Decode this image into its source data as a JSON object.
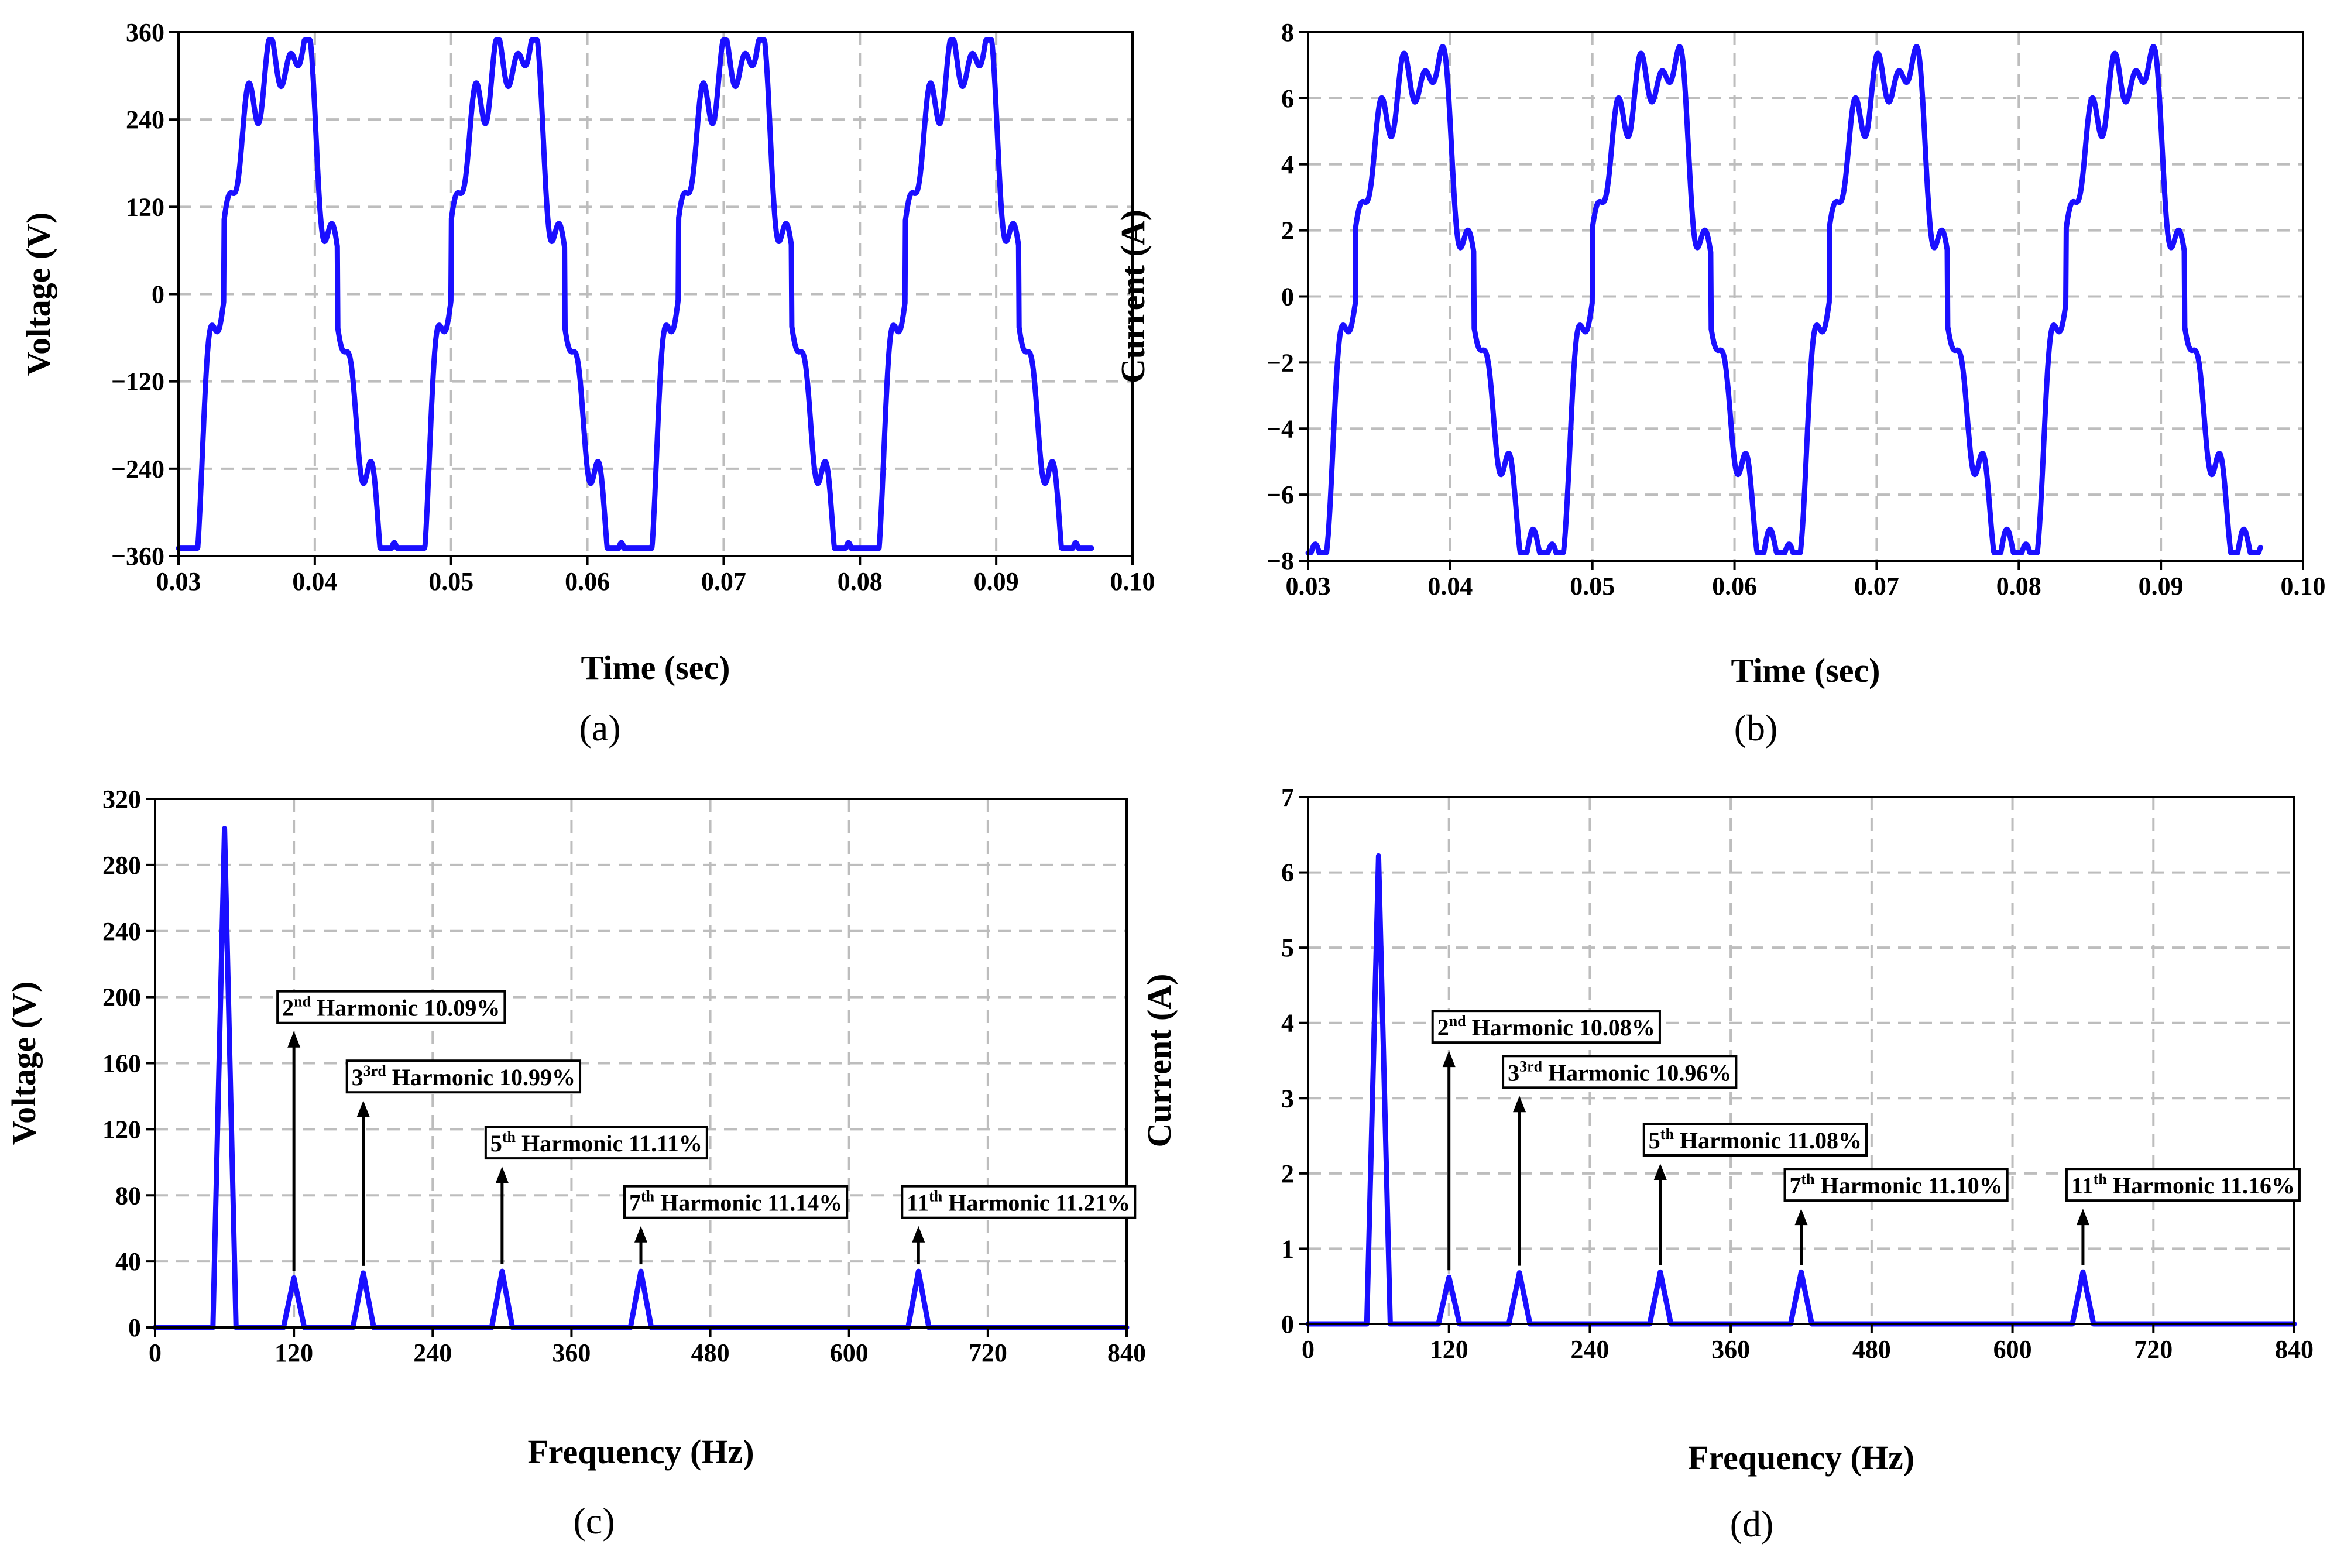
{
  "series_color": "#1a0fff",
  "chart_data": [
    {
      "panel": "a",
      "type": "line",
      "panel_label": "(a)",
      "xlabel": "Time (sec)",
      "ylabel": "Voltage (V)",
      "xlim": [
        0.03,
        0.1
      ],
      "ylim": [
        -360,
        360
      ],
      "xticks": [
        "0.03",
        "0.04",
        "0.05",
        "0.06",
        "0.07",
        "0.08",
        "0.09",
        "0.10"
      ],
      "yticks": [
        "-360",
        "-240",
        "-120",
        "0",
        "120",
        "240",
        "360"
      ],
      "x_range_drawn": [
        0.03,
        0.097
      ],
      "waveform": {
        "fundamental_hz": 60,
        "peak": 300,
        "harmonics": [
          [
            2,
            30
          ],
          [
            3,
            33
          ],
          [
            5,
            33
          ],
          [
            7,
            33
          ],
          [
            11,
            33
          ]
        ]
      }
    },
    {
      "panel": "b",
      "type": "line",
      "panel_label": "(b)",
      "xlabel": "Time (sec)",
      "ylabel": "Current (A)",
      "xlim": [
        0.03,
        0.1
      ],
      "ylim": [
        -8,
        8
      ],
      "xticks": [
        "0.03",
        "0.04",
        "0.05",
        "0.06",
        "0.07",
        "0.08",
        "0.09",
        "0.10"
      ],
      "yticks": [
        "-8",
        "-6",
        "-4",
        "-2",
        "0",
        "2",
        "4",
        "6",
        "8"
      ],
      "x_range_drawn": [
        0.03,
        0.097
      ],
      "waveform": {
        "fundamental_hz": 60,
        "peak": 6.2,
        "harmonics": [
          [
            2,
            0.62
          ],
          [
            3,
            0.68
          ],
          [
            5,
            0.69
          ],
          [
            7,
            0.69
          ],
          [
            11,
            0.69
          ]
        ]
      }
    },
    {
      "panel": "c",
      "type": "line",
      "panel_label": "(c)",
      "xlabel": "Frequency (Hz)",
      "ylabel": "Voltage (V)",
      "xlim": [
        0,
        840
      ],
      "ylim": [
        0,
        320
      ],
      "xticks": [
        "0",
        "120",
        "240",
        "360",
        "480",
        "600",
        "720",
        "840"
      ],
      "yticks": [
        "0",
        "40",
        "80",
        "120",
        "160",
        "200",
        "240",
        "280",
        "320"
      ],
      "peaks": [
        {
          "freq": 60,
          "value": 302
        },
        {
          "freq": 120,
          "value": 30
        },
        {
          "freq": 180,
          "value": 33
        },
        {
          "freq": 300,
          "value": 34
        },
        {
          "freq": 420,
          "value": 34
        },
        {
          "freq": 660,
          "value": 34
        }
      ],
      "annotations": [
        {
          "n": "2",
          "sup": "nd",
          "label": " Harmonic 10.09%",
          "freq": 120,
          "arrow_top": 178
        },
        {
          "n": "3",
          "sup": "3rd",
          "label": " Harmonic 10.99%",
          "freq": 180,
          "arrow_top": 136
        },
        {
          "n": "5",
          "sup": "th",
          "label": " Harmonic 11.11%",
          "freq": 300,
          "arrow_top": 96
        },
        {
          "n": "7",
          "sup": "th",
          "label": " Harmonic 11.14%",
          "freq": 420,
          "arrow_top": 60
        },
        {
          "n": "11",
          "sup": "th",
          "label": " Harmonic 11.21%",
          "freq": 660,
          "arrow_top": 60
        }
      ]
    },
    {
      "panel": "d",
      "type": "line",
      "panel_label": "(d)",
      "xlabel": "Frequency (Hz)",
      "ylabel": "Current (A)",
      "xlim": [
        0,
        840
      ],
      "ylim": [
        0,
        7
      ],
      "xticks": [
        "0",
        "120",
        "240",
        "360",
        "480",
        "600",
        "720",
        "840"
      ],
      "yticks": [
        "0",
        "1",
        "2",
        "3",
        "4",
        "5",
        "6",
        "7"
      ],
      "peaks": [
        {
          "freq": 60,
          "value": 6.22
        },
        {
          "freq": 120,
          "value": 0.62
        },
        {
          "freq": 180,
          "value": 0.68
        },
        {
          "freq": 300,
          "value": 0.69
        },
        {
          "freq": 420,
          "value": 0.69
        },
        {
          "freq": 660,
          "value": 0.69
        }
      ],
      "annotations": [
        {
          "n": "2",
          "sup": "nd",
          "label": " Harmonic 10.08%",
          "freq": 120,
          "arrow_top": 3.6
        },
        {
          "n": "3",
          "sup": "3rd",
          "label": " Harmonic 10.96%",
          "freq": 180,
          "arrow_top": 3.0
        },
        {
          "n": "5",
          "sup": "th",
          "label": " Harmonic 11.08%",
          "freq": 300,
          "arrow_top": 2.1
        },
        {
          "n": "7",
          "sup": "th",
          "label": " Harmonic 11.10%",
          "freq": 420,
          "arrow_top": 1.5
        },
        {
          "n": "11",
          "sup": "th",
          "label": " Harmonic 11.16%",
          "freq": 660,
          "arrow_top": 1.5
        }
      ]
    }
  ]
}
